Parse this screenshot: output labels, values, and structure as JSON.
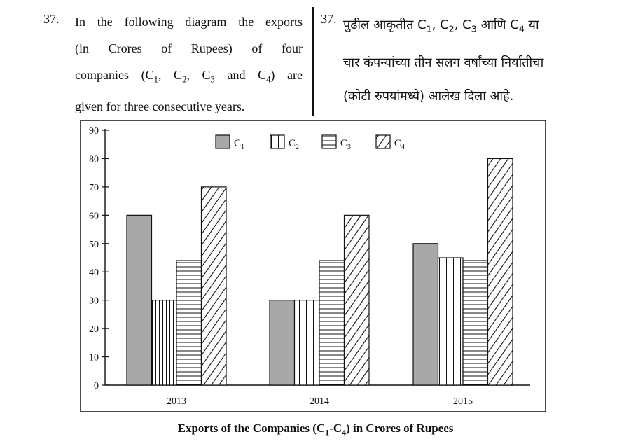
{
  "question": {
    "number_en": "37.",
    "number_mr": "37.",
    "en_lines": [
      "In the following diagram the exports",
      "(in Crores of Rupees) of four",
      "companies (C1, C2, C3 and C4) are",
      "given for three consecutive years."
    ],
    "mr_lines": [
      "पुढील आकृतीत C1, C2, C3 आणि C4 या",
      "चार कंपन्यांच्या तीन सलग वर्षांच्या निर्यातीचा",
      "(कोटी रुपयांमध्ये) आलेख दिला आहे."
    ]
  },
  "chart_data": {
    "type": "bar",
    "title": "Exports of the Companies (C1-C4) in Crores of Rupees",
    "xlabel": "",
    "ylabel": "",
    "categories": [
      "2013",
      "2014",
      "2015"
    ],
    "series": [
      {
        "name": "C1",
        "pattern": "solid-gray",
        "values": [
          60,
          30,
          50
        ]
      },
      {
        "name": "C2",
        "pattern": "vertical-lines",
        "values": [
          30,
          30,
          45
        ]
      },
      {
        "name": "C3",
        "pattern": "horizontal-lines",
        "values": [
          44,
          44,
          44
        ]
      },
      {
        "name": "C4",
        "pattern": "diagonal-lines",
        "values": [
          70,
          60,
          80
        ]
      }
    ],
    "ylim": [
      0,
      90
    ],
    "yticks": [
      0,
      10,
      20,
      30,
      40,
      50,
      60,
      70,
      80,
      90
    ],
    "grid": false,
    "legend_position": "top"
  },
  "colors": {
    "c1_fill": "#a8a8a8",
    "stroke": "#111111",
    "background": "#ffffff"
  }
}
